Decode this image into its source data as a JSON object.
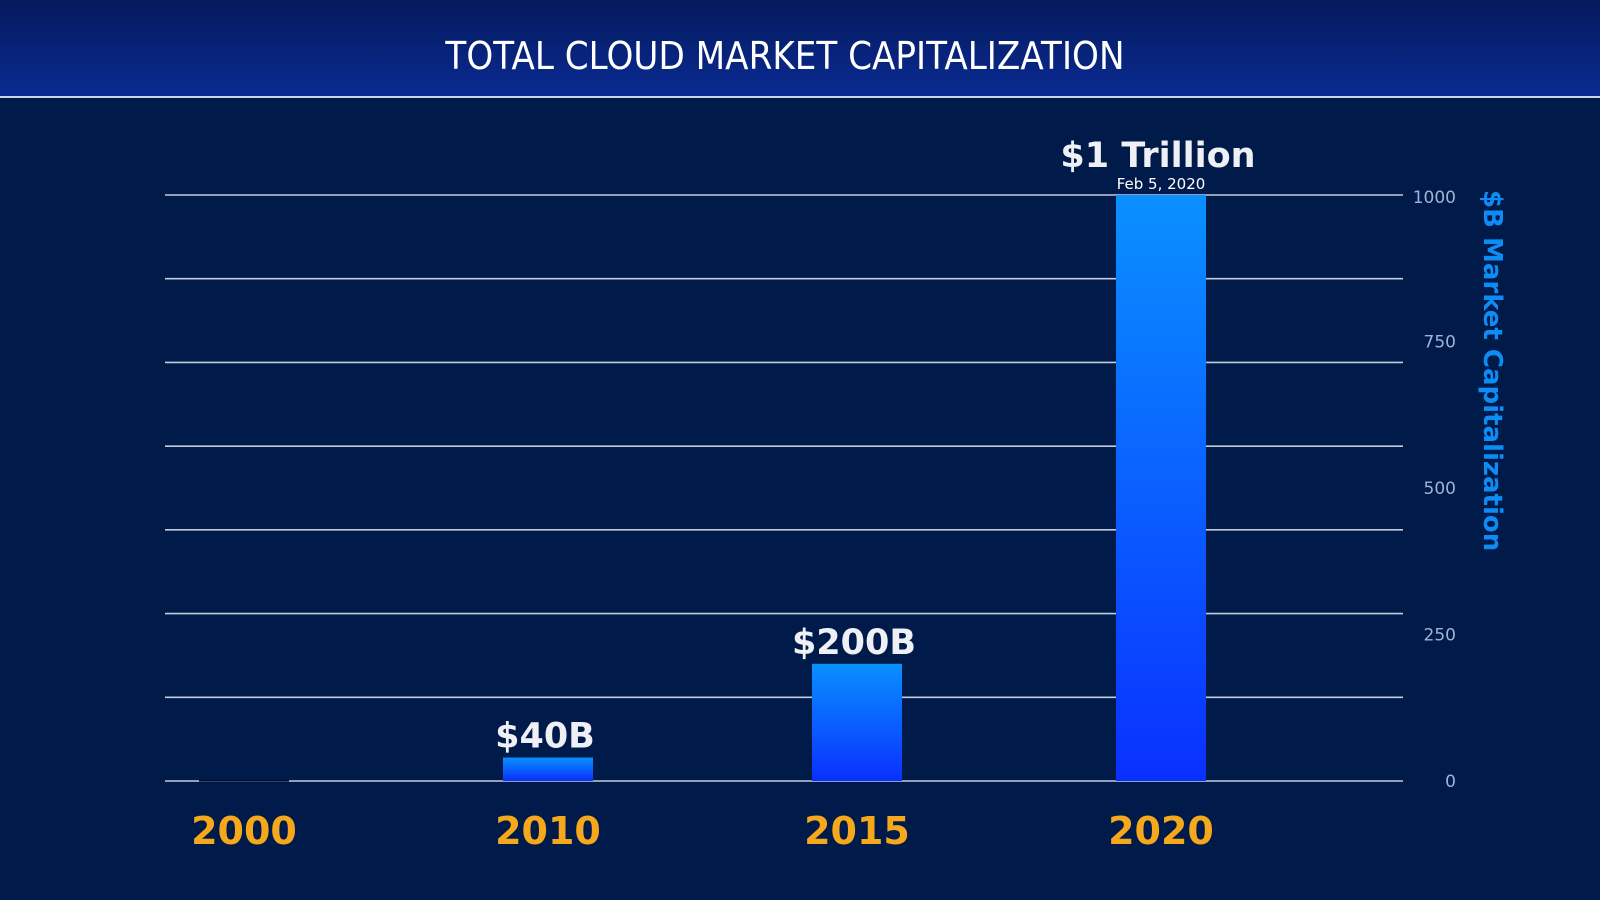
{
  "header": {
    "title": "TOTAL CLOUD MARKET CAPITALIZATION"
  },
  "colors": {
    "background": "#001a4a",
    "bar_top": "#0a90ff",
    "bar_bottom": "#0a30ff",
    "year_label": "#f5a81c",
    "axis_title": "#0d8cf5",
    "gridline": "#c3ccdb"
  },
  "chart_data": {
    "type": "bar",
    "title": "TOTAL CLOUD MARKET CAPITALIZATION",
    "xlabel": "",
    "ylabel": "$B Market Capitalization",
    "y_axis_side": "right",
    "categories": [
      "2000",
      "2010",
      "2015",
      "2020"
    ],
    "values": [
      0,
      40,
      200,
      1000
    ],
    "data_labels": [
      "",
      "$40B",
      "$200B",
      "$1 Trillion"
    ],
    "annotations": [
      {
        "category": "2020",
        "text": "Feb 5, 2020"
      }
    ],
    "ylim": [
      0,
      1000
    ],
    "yticks": [
      0,
      250,
      500,
      750,
      1000
    ],
    "ytick_labels": [
      "0",
      "250",
      "500",
      "750",
      "1000"
    ],
    "gridline_count": 8,
    "grid": true,
    "legend": "none"
  }
}
